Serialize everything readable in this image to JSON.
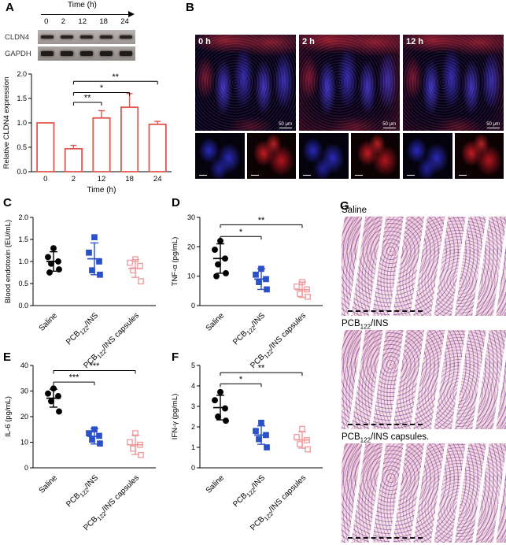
{
  "panels": {
    "a": "A",
    "b": "B",
    "c": "C",
    "d": "D",
    "e": "E",
    "f": "F",
    "g": "G"
  },
  "panel_a": {
    "time_label": "Time (h)",
    "timepoints": [
      "0",
      "2",
      "12",
      "18",
      "24"
    ],
    "blot_rows": [
      "CLDN4",
      "GAPDH"
    ]
  },
  "panel_b": {
    "images": [
      {
        "label": "0 h",
        "scale_bar": "50 μm"
      },
      {
        "label": "2 h",
        "scale_bar": "50 μm"
      },
      {
        "label": "12 h",
        "scale_bar": "50 μm"
      }
    ]
  },
  "panel_g": {
    "images": [
      {
        "pre": "Saline",
        "sub": "",
        "post": ""
      },
      {
        "pre": "PCB",
        "sub": "122",
        "post": "/INS"
      },
      {
        "pre": "PCB",
        "sub": "122",
        "post": "/INS capsules."
      }
    ]
  },
  "chart_data": {
    "cldn4_expression": {
      "type": "bar",
      "categories": [
        "0",
        "2",
        "12",
        "18",
        "24"
      ],
      "values": [
        1.0,
        0.47,
        1.1,
        1.32,
        0.97
      ],
      "errors": [
        0,
        0.07,
        0.15,
        0.28,
        0.06
      ],
      "xlabel": "Time (h)",
      "ylabel": "Relative CLDN4 expression",
      "ylim": [
        0,
        2.0
      ],
      "yticks": [
        "0.0",
        "0.5",
        "1.0",
        "1.5",
        "2.0"
      ],
      "bar_fill": "#ffffff",
      "bar_edge": "#e2574f",
      "significance": [
        {
          "from": 1,
          "to": 2,
          "label": "**",
          "y": 1.42
        },
        {
          "from": 1,
          "to": 3,
          "label": "*",
          "y": 1.62
        },
        {
          "from": 1,
          "to": 4,
          "label": "**",
          "y": 1.85
        }
      ]
    },
    "blood_endotoxin": {
      "type": "scatter",
      "ylabel": "Blood endotoxin (EU/mL)",
      "ylim": [
        0,
        2.0
      ],
      "yticks": [
        "0.0",
        "0.5",
        "1.0",
        "1.5",
        "2.0"
      ],
      "groups": [
        {
          "pre": "Saline",
          "sub": "",
          "post": "",
          "marker": "circle",
          "open": false,
          "color": "#000000",
          "points": [
            1.3,
            1.1,
            1.0,
            0.95,
            0.82,
            0.75
          ],
          "mean": 1.0,
          "sd": 0.22
        },
        {
          "pre": "PCB",
          "sub": "122",
          "post": "/INS",
          "marker": "square",
          "open": false,
          "color": "#2b50c8",
          "points": [
            1.55,
            1.2,
            1.0,
            0.8,
            0.7
          ],
          "mean": 1.06,
          "sd": 0.36
        },
        {
          "pre": "PCB",
          "sub": "122",
          "post": "/INS capsules",
          "marker": "square",
          "open": true,
          "color": "#f2989b",
          "points": [
            1.05,
            0.97,
            0.9,
            0.8,
            0.55
          ],
          "mean": 0.84,
          "sd": 0.2
        }
      ],
      "significance": []
    },
    "tnf_alpha": {
      "type": "scatter",
      "ylabel": "TNF-α (pg/mL)",
      "ylim": [
        0,
        30
      ],
      "yticks": [
        "0",
        "10",
        "20",
        "30"
      ],
      "groups": [
        {
          "pre": "Saline",
          "sub": "",
          "post": "",
          "marker": "circle",
          "open": false,
          "color": "#000000",
          "points": [
            22,
            19,
            16,
            14,
            11,
            10
          ],
          "mean": 16,
          "sd": 5
        },
        {
          "pre": "PCB",
          "sub": "122",
          "post": "/INS",
          "marker": "square",
          "open": false,
          "color": "#2b50c8",
          "points": [
            12.5,
            10.5,
            9,
            8,
            5.5
          ],
          "mean": 9,
          "sd": 3.5
        },
        {
          "pre": "PCB",
          "sub": "122",
          "post": "/INS capsules",
          "marker": "square",
          "open": true,
          "color": "#f2989b",
          "points": [
            8,
            6.5,
            5.5,
            4,
            3
          ],
          "mean": 5.4,
          "sd": 2.6
        }
      ],
      "significance": [
        {
          "from": 0,
          "to": 1,
          "label": "*",
          "y": 23.5
        },
        {
          "from": 0,
          "to": 2,
          "label": "**",
          "y": 27.5
        }
      ]
    },
    "il6": {
      "type": "scatter",
      "ylabel": "IL-6 (pg/mL)",
      "ylim": [
        0,
        40
      ],
      "yticks": [
        "0",
        "10",
        "20",
        "30",
        "40"
      ],
      "groups": [
        {
          "pre": "Saline",
          "sub": "",
          "post": "",
          "marker": "circle",
          "open": false,
          "color": "#000000",
          "points": [
            31,
            29,
            28,
            26,
            22
          ],
          "mean": 27.2,
          "sd": 3.5
        },
        {
          "pre": "PCB",
          "sub": "122",
          "post": "/INS",
          "marker": "square",
          "open": false,
          "color": "#2b50c8",
          "points": [
            15,
            13.5,
            12.5,
            11,
            9.5
          ],
          "mean": 12.3,
          "sd": 3
        },
        {
          "pre": "PCB",
          "sub": "122",
          "post": "/INS capsules",
          "marker": "square",
          "open": true,
          "color": "#f2989b",
          "points": [
            13.5,
            10,
            9,
            7.5,
            5
          ],
          "mean": 9,
          "sd": 3.8
        }
      ],
      "significance": [
        {
          "from": 0,
          "to": 1,
          "label": "***",
          "y": 33.5
        },
        {
          "from": 0,
          "to": 2,
          "label": "***",
          "y": 38
        }
      ]
    },
    "ifn_gamma": {
      "type": "scatter",
      "ylabel": "IFN-γ (pg/mL)",
      "ylim": [
        0,
        5
      ],
      "yticks": [
        "0",
        "1",
        "2",
        "3",
        "4",
        "5"
      ],
      "groups": [
        {
          "pre": "Saline",
          "sub": "",
          "post": "",
          "marker": "circle",
          "open": false,
          "color": "#000000",
          "points": [
            3.7,
            3.3,
            2.9,
            2.5,
            2.3
          ],
          "mean": 2.94,
          "sd": 0.6
        },
        {
          "pre": "PCB",
          "sub": "122",
          "post": "/INS",
          "marker": "square",
          "open": false,
          "color": "#2b50c8",
          "points": [
            2.2,
            1.8,
            1.6,
            1.4,
            1.0
          ],
          "mean": 1.6,
          "sd": 0.45
        },
        {
          "pre": "PCB",
          "sub": "122",
          "post": "/INS capsules",
          "marker": "square",
          "open": true,
          "color": "#f2989b",
          "points": [
            1.9,
            1.5,
            1.35,
            1.15,
            0.9
          ],
          "mean": 1.36,
          "sd": 0.4
        }
      ],
      "significance": [
        {
          "from": 0,
          "to": 1,
          "label": "*",
          "y": 4.1
        },
        {
          "from": 0,
          "to": 2,
          "label": "**",
          "y": 4.65
        }
      ]
    }
  }
}
